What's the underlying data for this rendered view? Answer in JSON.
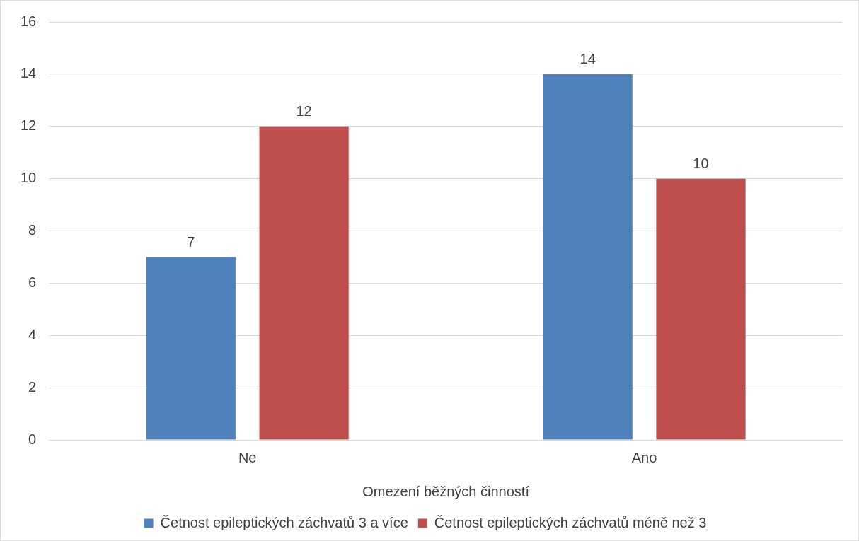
{
  "chart_data": {
    "type": "bar",
    "xlabel": "Omezení běžných činností",
    "categories": [
      "Ne",
      "Ano"
    ],
    "series": [
      {
        "name": "Četnost epileptických záchvatů 3 a více",
        "color": "#4f81bd",
        "values": [
          7,
          14
        ]
      },
      {
        "name": "Četnost epileptických záchvatů méně než 3",
        "color": "#c0504d",
        "values": [
          12,
          10
        ]
      }
    ],
    "ylim": [
      0,
      16
    ],
    "yticks": [
      0,
      2,
      4,
      6,
      8,
      10,
      12,
      14,
      16
    ],
    "grid": "y",
    "legend": "bottom",
    "data_labels": true
  }
}
